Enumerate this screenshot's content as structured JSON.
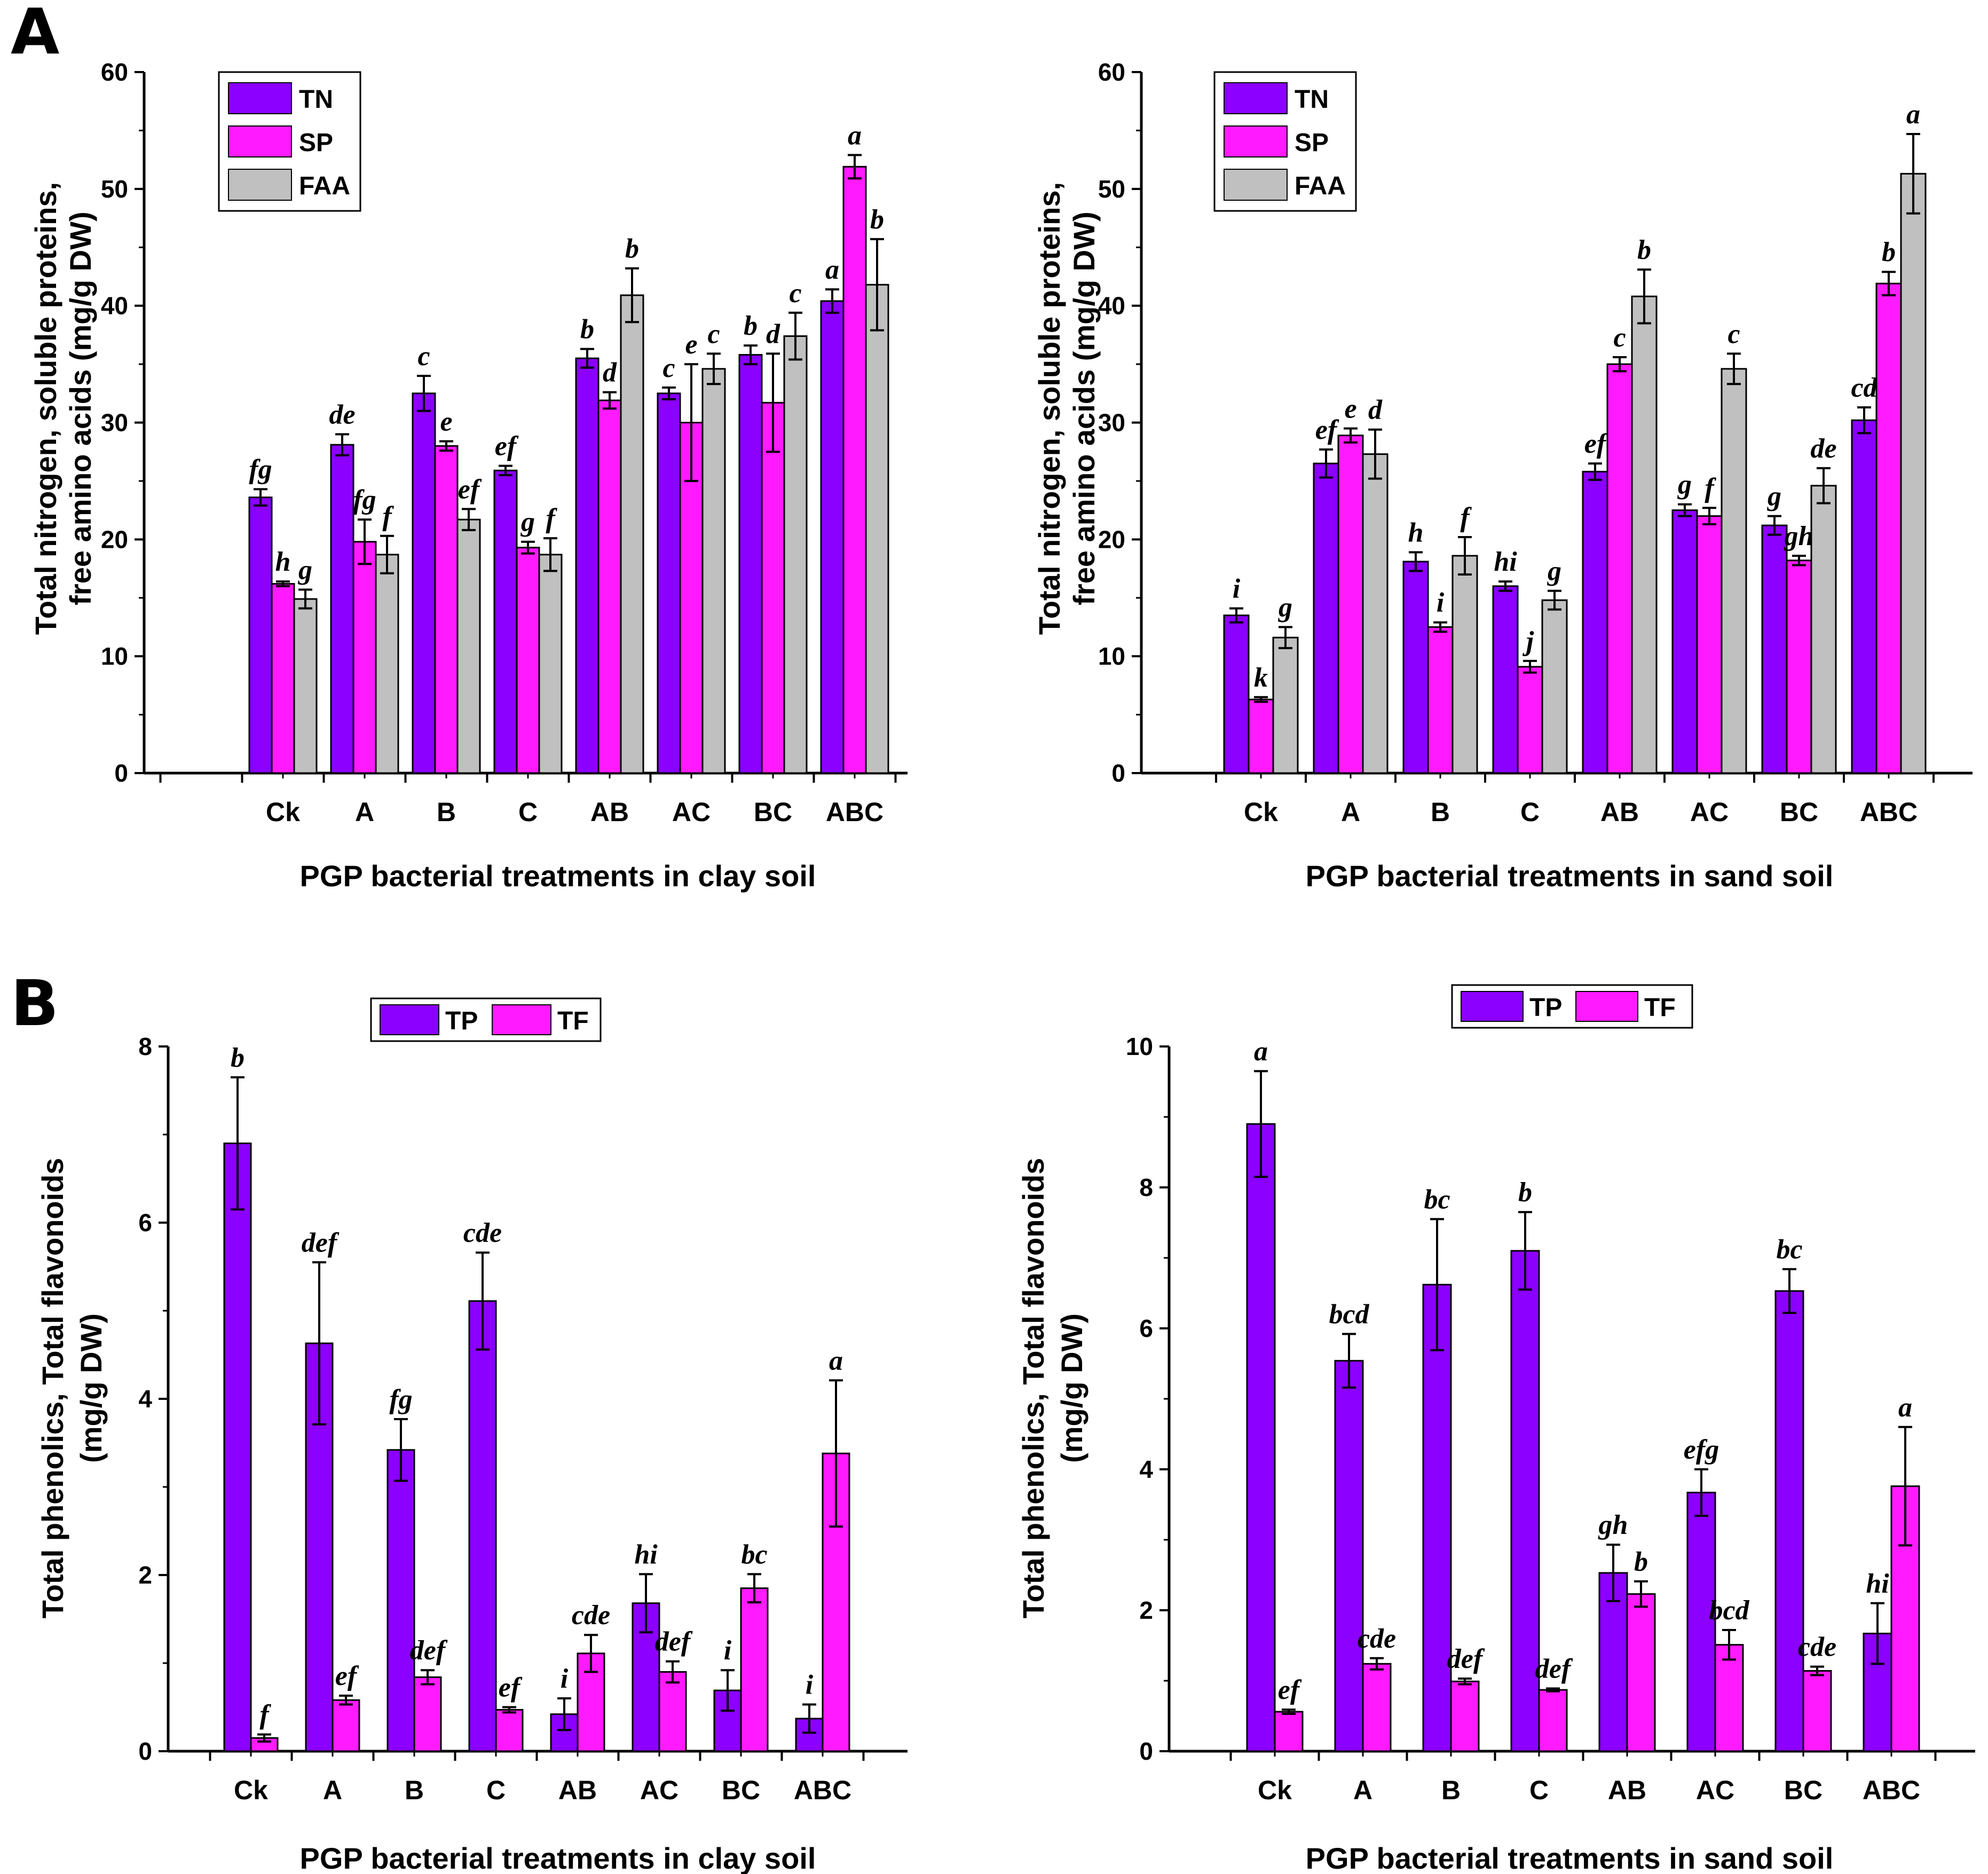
{
  "panel_labels": [
    "A",
    "B"
  ],
  "colors": {
    "TN": "#8b00ff",
    "SP": "#ff1aff",
    "FAA": "#c0c0c0",
    "TP": "#8b00ff",
    "TF": "#ff1aff"
  },
  "chart_data": [
    {
      "id": "A-clay",
      "type": "bar",
      "panel": "A",
      "title": "",
      "xlabel": "PGP bacterial treatments in clay soil",
      "ylabel": [
        "Total nitrogen, soluble proteins,",
        "free amino acids (mg/g DW)"
      ],
      "ylim": [
        0,
        60
      ],
      "yticks": [
        0,
        10,
        20,
        30,
        40,
        50,
        60
      ],
      "legend_position": "top-left",
      "categories": [
        "Ck",
        "A",
        "B",
        "C",
        "AB",
        "AC",
        "BC",
        "ABC"
      ],
      "series": [
        {
          "name": "TN",
          "color_key": "TN",
          "values": [
            23.6,
            28.1,
            32.5,
            25.9,
            35.5,
            32.5,
            35.8,
            40.4
          ],
          "errors": [
            0.7,
            0.9,
            1.5,
            0.4,
            0.8,
            0.5,
            0.8,
            1.0
          ],
          "labels": [
            "fg",
            "de",
            "c",
            "ef",
            "b",
            "c",
            "b",
            "a"
          ]
        },
        {
          "name": "SP",
          "color_key": "SP",
          "values": [
            16.2,
            19.8,
            28.0,
            19.3,
            31.9,
            30.0,
            31.7,
            51.9
          ],
          "errors": [
            0.2,
            1.9,
            0.4,
            0.5,
            0.7,
            5.0,
            4.2,
            1.0
          ],
          "labels": [
            "h",
            "fg",
            "e",
            "g",
            "d",
            "e",
            "d",
            "a"
          ]
        },
        {
          "name": "FAA",
          "color_key": "FAA",
          "values": [
            14.9,
            18.7,
            21.7,
            18.7,
            40.9,
            34.6,
            37.4,
            41.8
          ],
          "errors": [
            0.8,
            1.6,
            0.9,
            1.4,
            2.3,
            1.3,
            2.0,
            3.9
          ],
          "labels": [
            "g",
            "f",
            "ef",
            "f",
            "b",
            "c",
            "c",
            "b"
          ]
        }
      ]
    },
    {
      "id": "A-sand",
      "type": "bar",
      "panel": "A",
      "title": "",
      "xlabel": "PGP bacterial treatments in sand soil",
      "ylabel": [
        "Total nitrogen, soluble proteins,",
        "free amino acids (mg/g DW)"
      ],
      "ylim": [
        0,
        60
      ],
      "yticks": [
        0,
        10,
        20,
        30,
        40,
        50,
        60
      ],
      "legend_position": "top-left",
      "categories": [
        "Ck",
        "A",
        "B",
        "C",
        "AB",
        "AC",
        "BC",
        "ABC"
      ],
      "series": [
        {
          "name": "TN",
          "color_key": "TN",
          "values": [
            13.5,
            26.5,
            18.1,
            16.0,
            25.8,
            22.5,
            21.2,
            30.2
          ],
          "errors": [
            0.6,
            1.2,
            0.8,
            0.4,
            0.7,
            0.5,
            0.8,
            1.1
          ],
          "labels": [
            "i",
            "ef",
            "h",
            "hi",
            "ef",
            "g",
            "g",
            "cd"
          ]
        },
        {
          "name": "SP",
          "color_key": "SP",
          "values": [
            6.3,
            28.9,
            12.5,
            9.1,
            35.0,
            22.0,
            18.2,
            41.9
          ],
          "errors": [
            0.2,
            0.6,
            0.4,
            0.5,
            0.6,
            0.7,
            0.4,
            1.0
          ],
          "labels": [
            "k",
            "e",
            "i",
            "j",
            "c",
            "f",
            "gh",
            "b"
          ]
        },
        {
          "name": "FAA",
          "color_key": "FAA",
          "values": [
            11.6,
            27.3,
            18.6,
            14.8,
            40.8,
            34.6,
            24.6,
            51.3
          ],
          "errors": [
            0.9,
            2.1,
            1.6,
            0.8,
            2.3,
            1.3,
            1.5,
            3.4
          ],
          "labels": [
            "g",
            "d",
            "f",
            "g",
            "b",
            "c",
            "de",
            "a"
          ]
        }
      ]
    },
    {
      "id": "B-clay",
      "type": "bar",
      "panel": "B",
      "title": "",
      "xlabel": "PGP bacterial treatments in clay soil",
      "ylabel": [
        "Total phenolics, Total flavonoids",
        "(mg/g DW)"
      ],
      "ylim": [
        0,
        8
      ],
      "yticks": [
        0,
        2,
        4,
        6,
        8
      ],
      "legend_position": "top-center",
      "categories": [
        "Ck",
        "A",
        "B",
        "C",
        "AB",
        "AC",
        "BC",
        "ABC"
      ],
      "series": [
        {
          "name": "TP",
          "color_key": "TP",
          "values": [
            6.9,
            4.63,
            3.42,
            5.11,
            0.42,
            1.68,
            0.69,
            0.37
          ],
          "errors": [
            0.75,
            0.92,
            0.35,
            0.55,
            0.18,
            0.33,
            0.23,
            0.16
          ],
          "labels": [
            "b",
            "def",
            "fg",
            "cde",
            "i",
            "hi",
            "i",
            "i"
          ]
        },
        {
          "name": "TF",
          "color_key": "TF",
          "values": [
            0.15,
            0.58,
            0.84,
            0.47,
            1.11,
            0.9,
            1.85,
            3.38
          ],
          "errors": [
            0.04,
            0.05,
            0.08,
            0.03,
            0.21,
            0.12,
            0.16,
            0.83
          ],
          "labels": [
            "f",
            "ef",
            "def",
            "ef",
            "cde",
            "def",
            "bc",
            "a"
          ]
        }
      ]
    },
    {
      "id": "B-sand",
      "type": "bar",
      "panel": "B",
      "title": "",
      "xlabel": "PGP bacterial treatments in sand soil",
      "ylabel": [
        "Total phenolics, Total flavonoids",
        "(mg/g DW)"
      ],
      "ylim": [
        0,
        10
      ],
      "yticks": [
        0,
        2,
        4,
        6,
        8,
        10
      ],
      "legend_position": "top-center",
      "categories": [
        "Ck",
        "A",
        "B",
        "C",
        "AB",
        "AC",
        "BC",
        "ABC"
      ],
      "series": [
        {
          "name": "TP",
          "color_key": "TP",
          "values": [
            8.9,
            5.54,
            6.62,
            7.1,
            2.53,
            3.67,
            6.53,
            1.67
          ],
          "errors": [
            0.75,
            0.38,
            0.93,
            0.55,
            0.4,
            0.33,
            0.31,
            0.43
          ],
          "labels": [
            "a",
            "bcd",
            "bc",
            "b",
            "gh",
            "efg",
            "bc",
            "hi"
          ]
        },
        {
          "name": "TF",
          "color_key": "TF",
          "values": [
            0.56,
            1.24,
            0.99,
            0.87,
            2.23,
            1.51,
            1.14,
            3.76
          ],
          "errors": [
            0.03,
            0.08,
            0.04,
            0.02,
            0.18,
            0.21,
            0.06,
            0.84
          ],
          "labels": [
            "ef",
            "cde",
            "def",
            "def",
            "b",
            "bcd",
            "cde",
            "a"
          ]
        }
      ]
    }
  ]
}
